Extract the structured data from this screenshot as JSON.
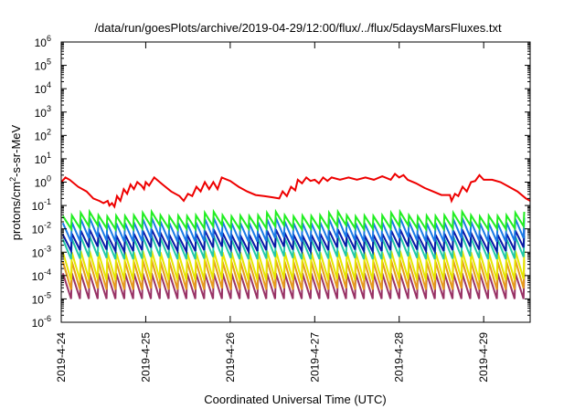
{
  "chart_data": {
    "type": "line",
    "title": "/data/run/goesPlots/archive/2019-04-29/12:00/flux/../flux/5daysMarsFluxes.txt",
    "xlabel": "Coordinated Universal Time (UTC)",
    "ylabel_main": "protons/cm",
    "ylabel_sup": "2",
    "ylabel_rest": "-s-sr-MeV",
    "y_scale": "log",
    "ylim_exp": [
      -6,
      6
    ],
    "y_ticks": [
      {
        "base": "10",
        "exp": "-6"
      },
      {
        "base": "10",
        "exp": "-5"
      },
      {
        "base": "10",
        "exp": "-4"
      },
      {
        "base": "10",
        "exp": "-3"
      },
      {
        "base": "10",
        "exp": "-2"
      },
      {
        "base": "10",
        "exp": "-1"
      },
      {
        "base": "10",
        "exp": "0"
      },
      {
        "base": "10",
        "exp": "1"
      },
      {
        "base": "10",
        "exp": "2"
      },
      {
        "base": "10",
        "exp": "3"
      },
      {
        "base": "10",
        "exp": "4"
      },
      {
        "base": "10",
        "exp": "5"
      },
      {
        "base": "10",
        "exp": "6"
      }
    ],
    "x_range_days": [
      0,
      5.55
    ],
    "x_ticks": [
      {
        "day": 0,
        "label": "2019-4-24"
      },
      {
        "day": 1,
        "label": "2019-4-25"
      },
      {
        "day": 2,
        "label": "2019-4-26"
      },
      {
        "day": 3,
        "label": "2019-4-27"
      },
      {
        "day": 4,
        "label": "2019-4-28"
      },
      {
        "day": 5,
        "label": "2019-4-29"
      }
    ],
    "grid": false,
    "legend": "none",
    "series": [
      {
        "color": "#ee0000",
        "style": "red_profile",
        "points_log10": [
          [
            0.0,
            0.0
          ],
          [
            0.05,
            0.2
          ],
          [
            0.1,
            0.1
          ],
          [
            0.2,
            -0.2
          ],
          [
            0.3,
            -0.4
          ],
          [
            0.38,
            -0.7
          ],
          [
            0.45,
            -0.8
          ],
          [
            0.5,
            -0.9
          ],
          [
            0.55,
            -0.8
          ],
          [
            0.57,
            -1.0
          ],
          [
            0.6,
            -0.9
          ],
          [
            0.63,
            -1.05
          ],
          [
            0.66,
            -0.6
          ],
          [
            0.7,
            -0.8
          ],
          [
            0.74,
            -0.3
          ],
          [
            0.78,
            -0.5
          ],
          [
            0.82,
            -0.1
          ],
          [
            0.86,
            -0.3
          ],
          [
            0.9,
            0.0
          ],
          [
            0.95,
            -0.15
          ],
          [
            0.98,
            -0.3
          ],
          [
            1.0,
            0.0
          ],
          [
            1.04,
            -0.15
          ],
          [
            1.1,
            0.2
          ],
          [
            1.2,
            -0.1
          ],
          [
            1.3,
            -0.4
          ],
          [
            1.4,
            -0.6
          ],
          [
            1.45,
            -0.8
          ],
          [
            1.5,
            -0.5
          ],
          [
            1.55,
            -0.6
          ],
          [
            1.6,
            -0.2
          ],
          [
            1.65,
            -0.4
          ],
          [
            1.7,
            0.0
          ],
          [
            1.75,
            -0.3
          ],
          [
            1.8,
            0.0
          ],
          [
            1.85,
            -0.3
          ],
          [
            1.9,
            0.2
          ],
          [
            2.0,
            0.05
          ],
          [
            2.1,
            -0.2
          ],
          [
            2.2,
            -0.4
          ],
          [
            2.3,
            -0.55
          ],
          [
            2.4,
            -0.6
          ],
          [
            2.5,
            -0.65
          ],
          [
            2.58,
            -0.7
          ],
          [
            2.62,
            -0.4
          ],
          [
            2.67,
            -0.6
          ],
          [
            2.72,
            -0.2
          ],
          [
            2.77,
            -0.35
          ],
          [
            2.8,
            0.1
          ],
          [
            2.85,
            -0.05
          ],
          [
            2.9,
            0.2
          ],
          [
            2.95,
            0.05
          ],
          [
            3.0,
            0.1
          ],
          [
            3.05,
            -0.05
          ],
          [
            3.1,
            0.2
          ],
          [
            3.15,
            0.05
          ],
          [
            3.2,
            0.2
          ],
          [
            3.3,
            0.1
          ],
          [
            3.4,
            0.2
          ],
          [
            3.5,
            0.1
          ],
          [
            3.6,
            0.2
          ],
          [
            3.7,
            0.1
          ],
          [
            3.8,
            0.25
          ],
          [
            3.9,
            0.1
          ],
          [
            3.95,
            0.35
          ],
          [
            4.0,
            0.2
          ],
          [
            4.05,
            0.3
          ],
          [
            4.1,
            0.1
          ],
          [
            4.2,
            -0.05
          ],
          [
            4.3,
            -0.25
          ],
          [
            4.4,
            -0.4
          ],
          [
            4.5,
            -0.55
          ],
          [
            4.6,
            -0.55
          ],
          [
            4.62,
            -0.8
          ],
          [
            4.66,
            -0.5
          ],
          [
            4.7,
            -0.6
          ],
          [
            4.75,
            -0.2
          ],
          [
            4.8,
            -0.4
          ],
          [
            4.85,
            0.0
          ],
          [
            4.9,
            0.05
          ],
          [
            4.95,
            0.3
          ],
          [
            5.0,
            0.1
          ],
          [
            5.1,
            0.1
          ],
          [
            5.2,
            0.0
          ],
          [
            5.3,
            -0.2
          ],
          [
            5.4,
            -0.4
          ],
          [
            5.5,
            -0.7
          ],
          [
            5.55,
            -0.8
          ]
        ]
      },
      {
        "color": "#22ee22",
        "style": "sawtooth",
        "period": 0.105,
        "high": -1.45,
        "low": -2.0,
        "wave": [
          0,
          0.1,
          0.45,
          0.6,
          0.1,
          -0.05,
          0.05
        ]
      },
      {
        "color": "#1a7ae6",
        "style": "sawtooth",
        "period": 0.105,
        "high": -1.75,
        "low": -2.55,
        "wave": [
          0,
          0.1,
          0.6,
          0.75,
          0.2,
          0.0,
          0.0
        ]
      },
      {
        "color": "#0a1aa8",
        "style": "sawtooth",
        "period": 0.105,
        "high": -2.25,
        "low": -2.95,
        "wave": [
          0,
          0.15,
          0.6,
          0.75,
          0.25,
          0.0,
          -0.1
        ]
      },
      {
        "color": "#22c9a8",
        "style": "sawtooth",
        "period": 0.105,
        "high": -2.45,
        "low": -3.3,
        "wave": [
          0,
          0.1,
          0.4,
          0.5,
          0.2,
          0.0,
          0.0
        ]
      },
      {
        "color": "#e6e600",
        "style": "sawtooth",
        "period": 0.105,
        "high": -3.0,
        "low": -4.2,
        "wave": [
          0,
          0.0,
          0.2,
          0.2,
          0.0,
          0.0,
          0.0
        ]
      },
      {
        "color": "#e69a1a",
        "style": "sawtooth",
        "period": 0.105,
        "high": -3.4,
        "low": -4.6,
        "wave": [
          0,
          0.0,
          0.2,
          0.2,
          0.0,
          0.0,
          0.0
        ]
      },
      {
        "color": "#993366",
        "style": "sawtooth",
        "period": 0.105,
        "high": -3.9,
        "low": -5.0,
        "wave": [
          0,
          0.0,
          0.0,
          0.0,
          0.0,
          0.0,
          0.0
        ]
      }
    ]
  }
}
